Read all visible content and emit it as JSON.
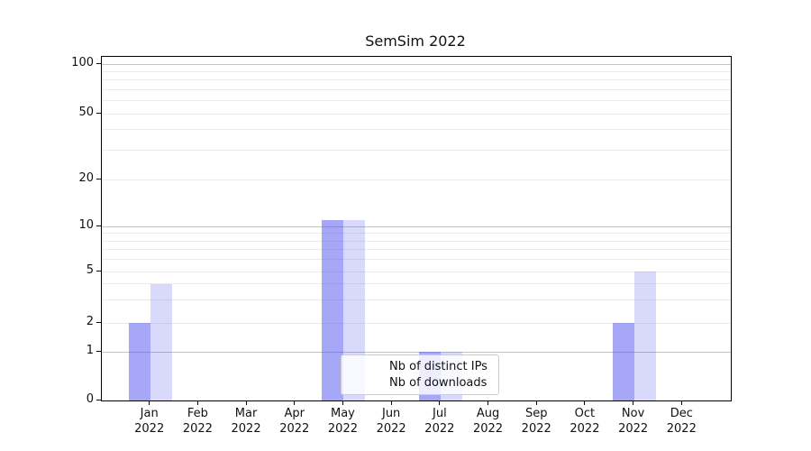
{
  "chart_data": {
    "type": "bar",
    "title": "SemSim 2022",
    "x_categories": [
      "Jan 2022",
      "Feb 2022",
      "Mar 2022",
      "Apr 2022",
      "May 2022",
      "Jun 2022",
      "Jul 2022",
      "Aug 2022",
      "Sep 2022",
      "Oct 2022",
      "Nov 2022",
      "Dec 2022"
    ],
    "series": [
      {
        "name": "Nb of distinct IPs",
        "color": "rgba(80,80,240,0.50)",
        "values": [
          2,
          0,
          0,
          0,
          11,
          0,
          1,
          0,
          0,
          0,
          2,
          0
        ]
      },
      {
        "name": "Nb of downloads",
        "color": "rgba(80,80,240,0.22)",
        "values": [
          4,
          0,
          0,
          0,
          11,
          0,
          1,
          0,
          0,
          0,
          5,
          0
        ]
      }
    ],
    "yscale": "symlog",
    "ylim": [
      0,
      115
    ],
    "ytick_labels": [
      "0",
      "1",
      "2",
      "5",
      "10",
      "20",
      "50",
      "100"
    ],
    "ytick_values": [
      0,
      1,
      2,
      5,
      10,
      20,
      50,
      100
    ],
    "major_gridline_values": [
      1,
      10,
      100
    ],
    "minor_gridline_values": [
      2,
      3,
      4,
      5,
      6,
      7,
      8,
      9,
      20,
      30,
      40,
      50,
      60,
      70,
      80,
      90
    ],
    "grid": "horizontal",
    "legend_position": "lower center, overlapping Jul bars",
    "colors": {
      "bar_primary_rendered": "#a9a9f6",
      "bar_secondary_rendered": "#dcdcf8",
      "major_grid": "#c3c3c3",
      "minor_grid": "#eaeaea",
      "axis": "#000000",
      "legend_border": "#cccccc"
    }
  }
}
